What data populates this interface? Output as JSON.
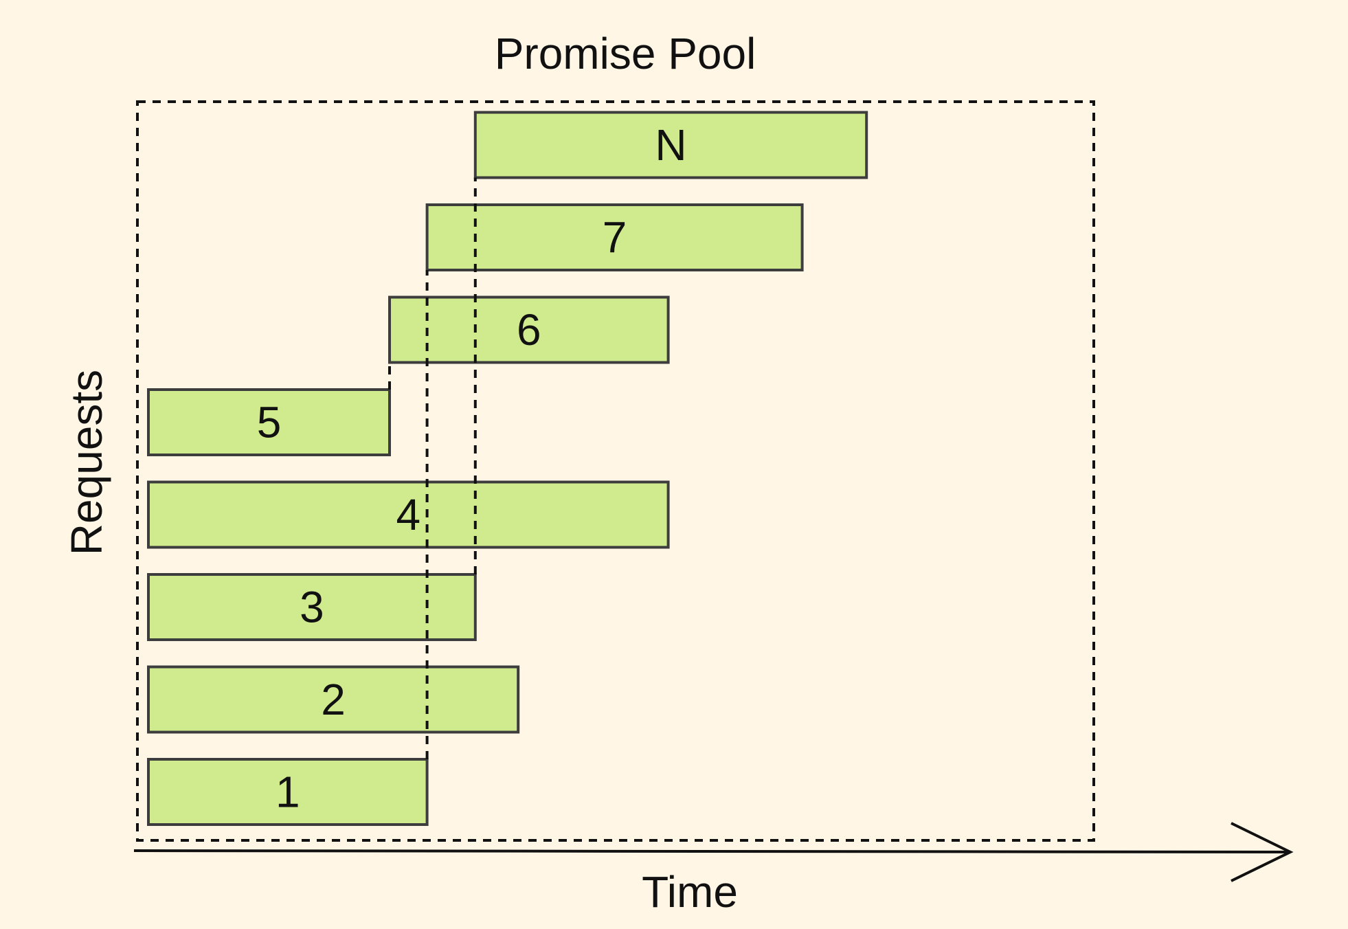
{
  "title": "Promise Pool",
  "x_axis_label": "Time",
  "y_axis_label": "Requests",
  "colors": {
    "background": "#fff6e6",
    "bar_fill": "#cfeb8d",
    "bar_stroke": "#3d3d3d",
    "ink": "#111111"
  },
  "requests": [
    {
      "label": "1",
      "start": 0,
      "end": 52
    },
    {
      "label": "2",
      "start": 0,
      "end": 69
    },
    {
      "label": "3",
      "start": 0,
      "end": 61
    },
    {
      "label": "4",
      "start": 0,
      "end": 97
    },
    {
      "label": "5",
      "start": 0,
      "end": 45
    },
    {
      "label": "6",
      "start": 45,
      "end": 97
    },
    {
      "label": "7",
      "start": 52,
      "end": 122
    },
    {
      "label": "N",
      "start": 61,
      "end": 134
    }
  ]
}
